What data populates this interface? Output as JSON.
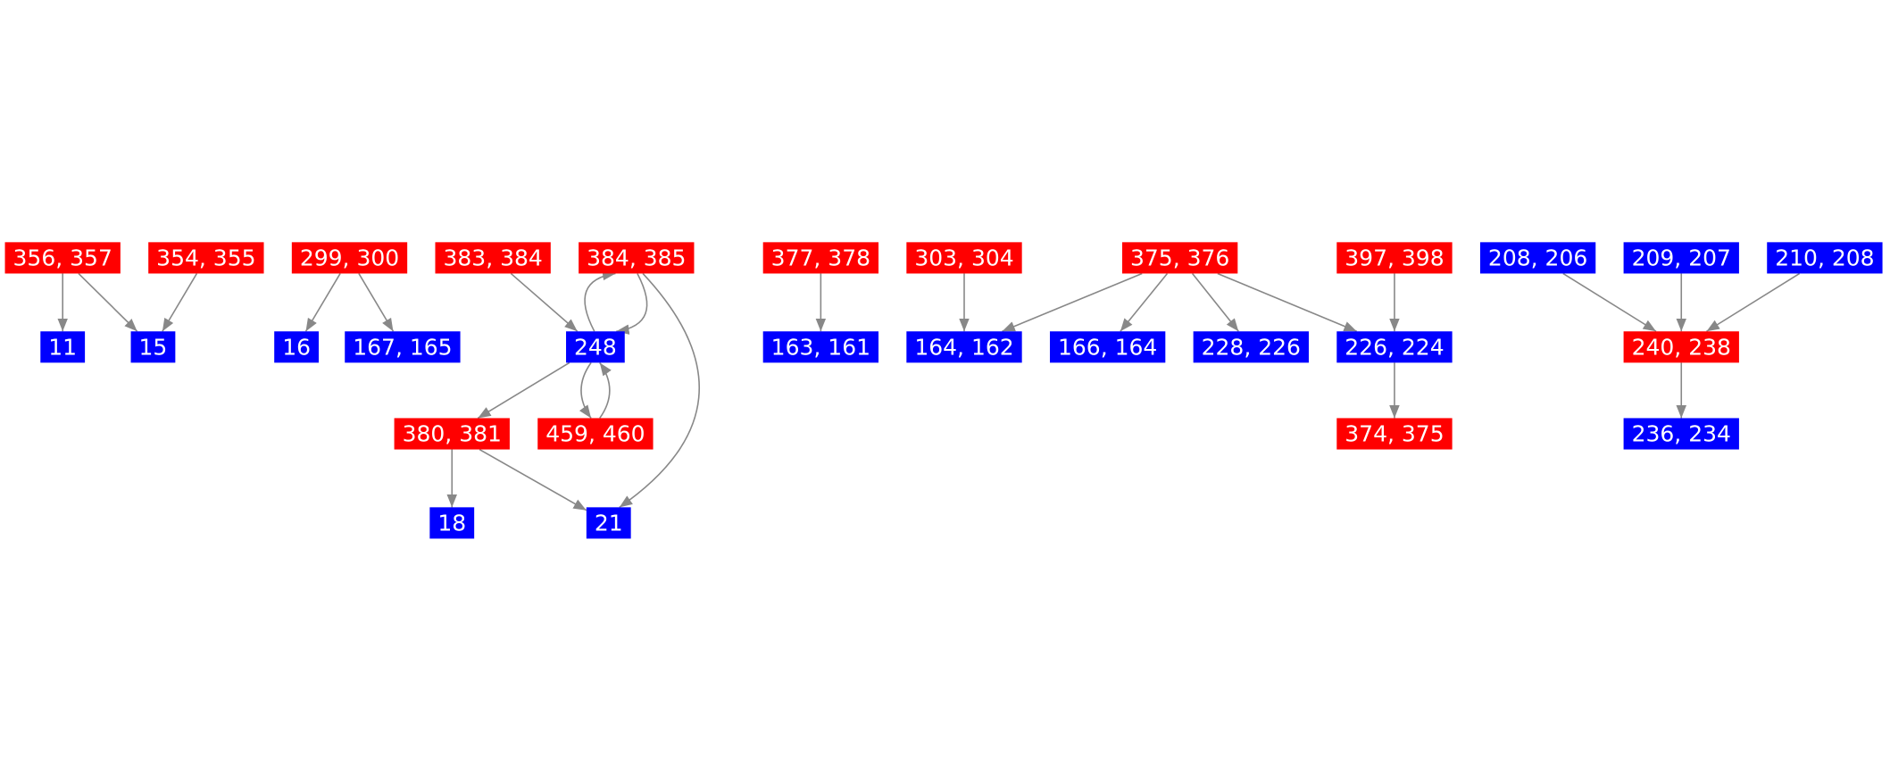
{
  "nodes": [
    {
      "label": "356, 357",
      "color": "#ff0000"
    },
    {
      "label": "354, 355",
      "color": "#ff0000"
    },
    {
      "label": "299, 300",
      "color": "#ff0000"
    },
    {
      "label": "383, 384",
      "color": "#ff0000"
    },
    {
      "label": "384, 385",
      "color": "#ff0000"
    },
    {
      "label": "377, 378",
      "color": "#ff0000"
    },
    {
      "label": "303, 304",
      "color": "#ff0000"
    },
    {
      "label": "375, 376",
      "color": "#ff0000"
    },
    {
      "label": "397, 398",
      "color": "#ff0000"
    },
    {
      "label": "208, 206",
      "color": "#0000ff"
    },
    {
      "label": "209, 207",
      "color": "#0000ff"
    },
    {
      "label": "210, 208",
      "color": "#0000ff"
    },
    {
      "label": "11",
      "color": "#0000ff"
    },
    {
      "label": "15",
      "color": "#0000ff"
    },
    {
      "label": "16",
      "color": "#0000ff"
    },
    {
      "label": "167, 165",
      "color": "#0000ff"
    },
    {
      "label": "248",
      "color": "#0000ff"
    },
    {
      "label": "163, 161",
      "color": "#0000ff"
    },
    {
      "label": "164, 162",
      "color": "#0000ff"
    },
    {
      "label": "166, 164",
      "color": "#0000ff"
    },
    {
      "label": "228, 226",
      "color": "#0000ff"
    },
    {
      "label": "226, 224",
      "color": "#0000ff"
    },
    {
      "label": "240, 238",
      "color": "#ff0000"
    },
    {
      "label": "380, 381",
      "color": "#ff0000"
    },
    {
      "label": "459, 460",
      "color": "#ff0000"
    },
    {
      "label": "374, 375",
      "color": "#ff0000"
    },
    {
      "label": "236, 234",
      "color": "#0000ff"
    },
    {
      "label": "18",
      "color": "#0000ff"
    },
    {
      "label": "21",
      "color": "#0000ff"
    }
  ]
}
